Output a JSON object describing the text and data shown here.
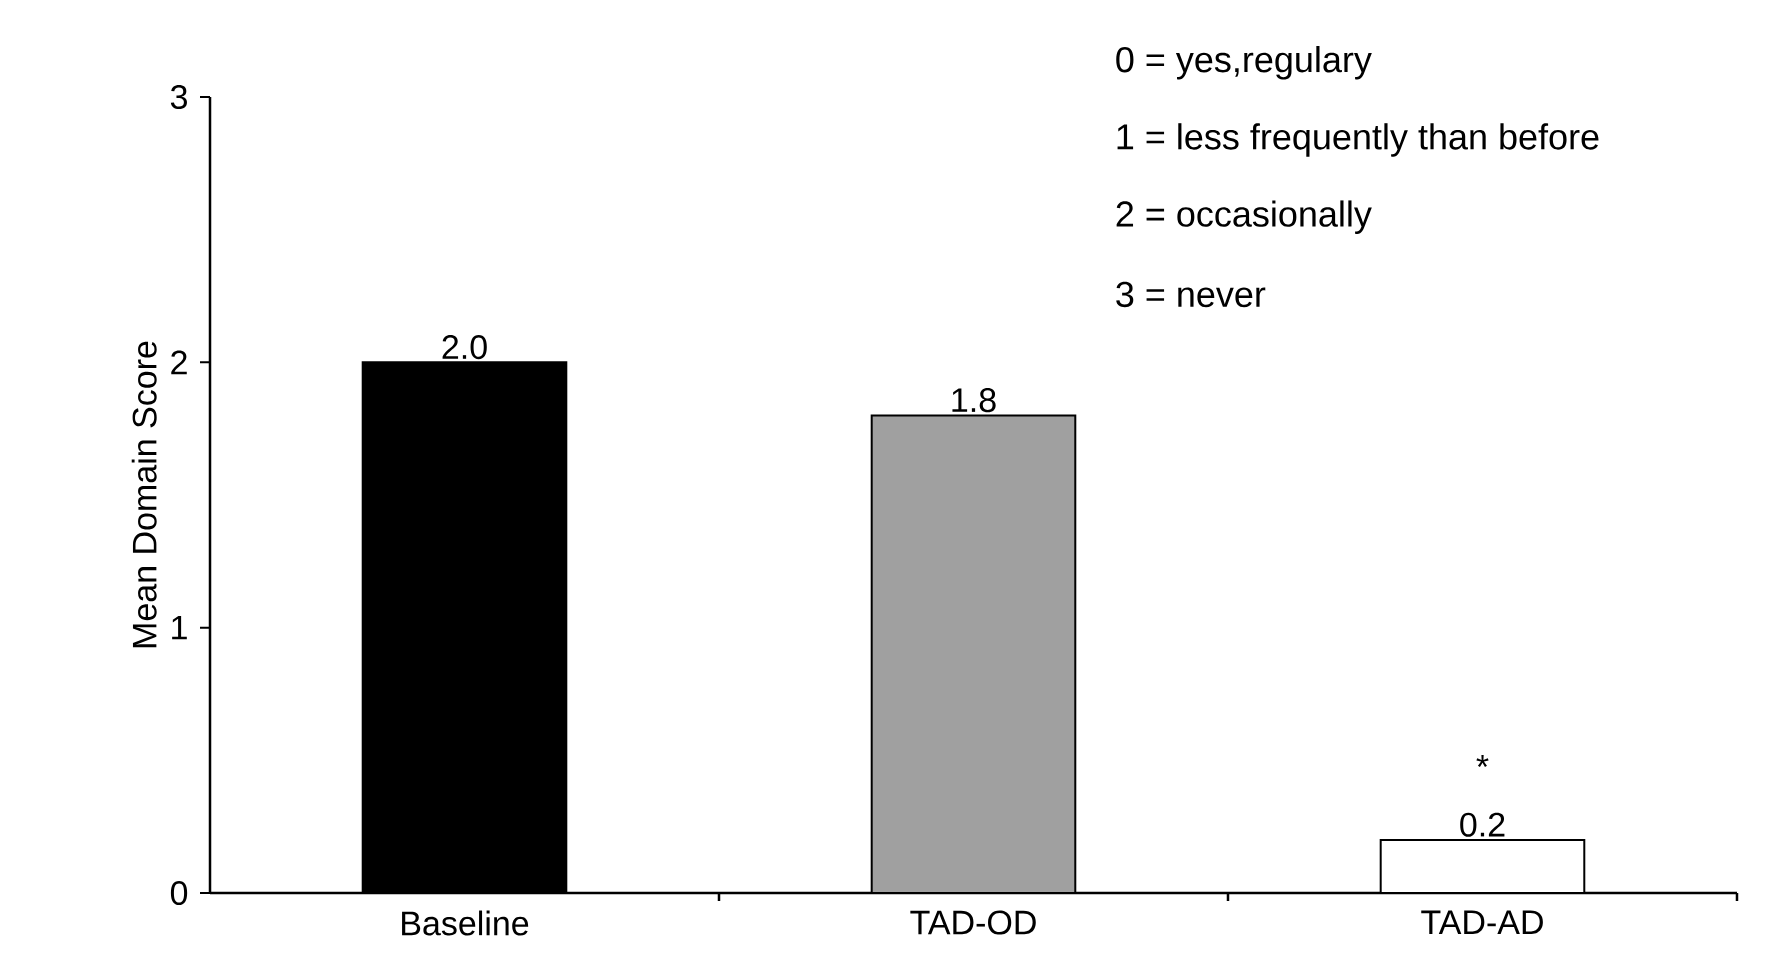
{
  "chart_data": {
    "type": "bar",
    "ylabel": "Mean Domain Score",
    "categories": [
      "Baseline",
      "TAD-OD",
      "TAD-AD"
    ],
    "values": [
      2.0,
      1.8,
      0.2
    ],
    "colors": [
      "#000000",
      "#a0a0a0",
      "#ffffff"
    ],
    "value_labels": [
      "2.0",
      "1.8",
      "0.2"
    ],
    "ylim": [
      0,
      3
    ],
    "yticks": [
      0,
      1,
      2,
      3
    ],
    "grid": false,
    "annotations": [
      "0 = yes,regulary",
      "1 = less frequently than before",
      "2 = occasionally",
      "3 = never",
      "*"
    ]
  }
}
